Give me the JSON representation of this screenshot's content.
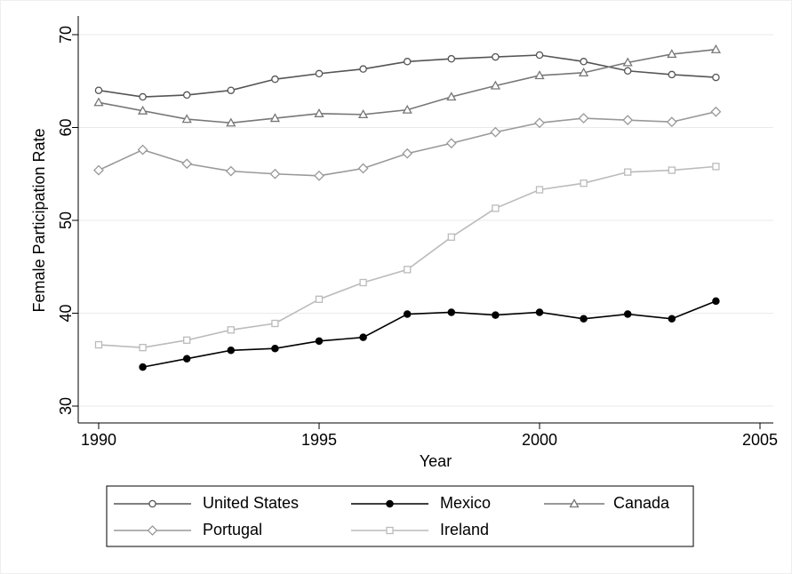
{
  "chart_data": {
    "type": "line",
    "x_label": "Year",
    "y_label": "Female Participation Rate",
    "x": [
      1990,
      1991,
      1992,
      1993,
      1994,
      1995,
      1996,
      1997,
      1998,
      1999,
      2000,
      2001,
      2002,
      2003,
      2004
    ],
    "series": [
      {
        "name": "United States",
        "color": "#555555",
        "marker": "circle",
        "values": [
          64.0,
          63.3,
          63.5,
          64.0,
          65.2,
          65.8,
          66.3,
          67.1,
          67.4,
          67.6,
          67.8,
          67.1,
          66.1,
          65.7,
          65.4
        ]
      },
      {
        "name": "Mexico",
        "color": "#000000",
        "marker": "dot",
        "values": [
          null,
          34.2,
          35.1,
          36.0,
          36.2,
          37.0,
          37.4,
          39.9,
          40.1,
          39.8,
          40.1,
          39.4,
          39.9,
          39.4,
          41.3
        ]
      },
      {
        "name": "Canada",
        "color": "#777777",
        "marker": "triangle",
        "values": [
          62.7,
          61.8,
          60.9,
          60.5,
          61.0,
          61.5,
          61.4,
          61.9,
          63.3,
          64.5,
          65.6,
          65.9,
          67.0,
          67.9,
          68.4
        ]
      },
      {
        "name": "Portugal",
        "color": "#999999",
        "marker": "diamond",
        "values": [
          55.4,
          57.6,
          56.1,
          55.3,
          55.0,
          54.8,
          55.6,
          57.2,
          58.3,
          59.5,
          60.5,
          61.0,
          60.8,
          60.6,
          61.7
        ]
      },
      {
        "name": "Ireland",
        "color": "#bbbbbb",
        "marker": "square",
        "values": [
          36.6,
          36.3,
          37.1,
          38.2,
          38.9,
          41.5,
          43.3,
          44.7,
          48.2,
          51.3,
          53.3,
          54.0,
          55.2,
          55.4,
          55.8
        ]
      }
    ],
    "xlim": [
      1990,
      2005
    ],
    "xticks": [
      1990,
      1995,
      2000,
      2005
    ],
    "ylim": [
      30,
      70
    ],
    "yticks": [
      30,
      40,
      50,
      60,
      70
    ],
    "grid": true
  }
}
